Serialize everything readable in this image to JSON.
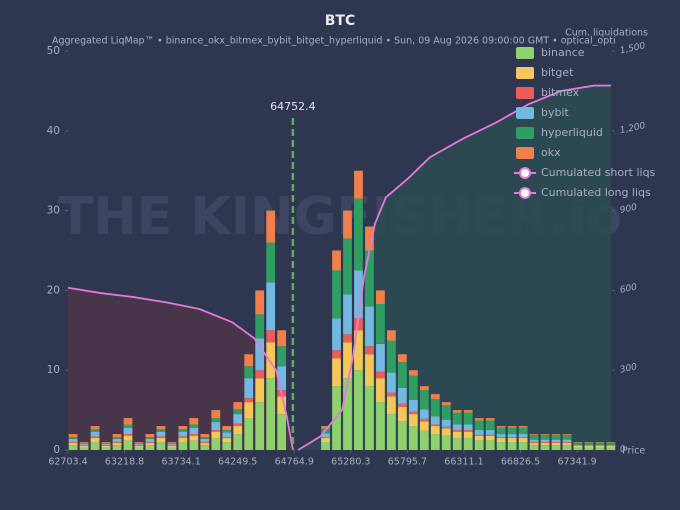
{
  "chart_data": {
    "type": "bar",
    "title": "BTC",
    "subtitle": "Aggregated LiqMap™  •  binance_okx_bitmex_bybit_bitget_hyperliquid  •  Sun, 09 Aug 2026 09:00:00 GMT  •  optical_opti",
    "y2_label": "Cum. liquidations",
    "x_label": "Price",
    "watermark": "THE KINGFISHER.io",
    "current_price": 64752.4,
    "current_price_color": "#5fae5f",
    "stacked": true,
    "legend": "top-right",
    "xlim": [
      62703.4,
      67660
    ],
    "xticks": [
      62703.4,
      63218.8,
      63734.1,
      64249.5,
      64764.9,
      65280.3,
      65795.7,
      66311.1,
      66826.5,
      67341.9
    ],
    "ylim": [
      0,
      50
    ],
    "yticks": [
      0,
      10,
      20,
      30,
      40,
      50
    ],
    "y2lim": [
      0,
      1500
    ],
    "y2ticks": [
      0,
      300,
      600,
      900,
      {
        "value": 1200,
        "label": "1,200"
      },
      {
        "value": 1500,
        "label": "1,500"
      }
    ],
    "x": [
      62750,
      62850,
      62950,
      63050,
      63150,
      63250,
      63350,
      63450,
      63550,
      63650,
      63750,
      63850,
      63950,
      64050,
      64150,
      64250,
      64350,
      64450,
      64550,
      64650,
      64750,
      64850,
      64950,
      65050,
      65150,
      65250,
      65350,
      65450,
      65550,
      65650,
      65750,
      65850,
      65950,
      66050,
      66150,
      66250,
      66350,
      66450,
      66550,
      66650,
      66750,
      66850,
      66950,
      67050,
      67150,
      67250,
      67350,
      67450,
      67550,
      67650
    ],
    "series": [
      {
        "name": "binance",
        "color": "#8fd16f",
        "values": [
          0.6,
          0.3,
          1,
          0.3,
          0.6,
          1.2,
          0.3,
          0.6,
          1,
          0.3,
          1,
          1.2,
          0.6,
          1.5,
          1,
          2,
          4,
          6,
          9,
          4.5,
          0,
          0,
          0,
          1,
          8,
          9,
          10,
          8,
          6,
          4.5,
          3.6,
          3,
          2.4,
          2,
          1.8,
          1.5,
          1.5,
          1.2,
          1.2,
          1,
          1,
          1,
          0.6,
          0.6,
          0.6,
          0.6,
          0.3,
          0.3,
          0.3,
          0.3
        ]
      },
      {
        "name": "bitget",
        "color": "#f5c65a",
        "values": [
          0.3,
          0.2,
          0.5,
          0.2,
          0.3,
          0.6,
          0.2,
          0.3,
          0.5,
          0.2,
          0.5,
          0.6,
          0.3,
          0.8,
          0.5,
          1,
          2,
          3,
          4.5,
          2.2,
          0,
          0,
          0,
          0.5,
          3.5,
          4.5,
          5,
          4,
          3,
          2.2,
          1.8,
          1.5,
          1.2,
          1,
          0.9,
          0.8,
          0.8,
          0.6,
          0.6,
          0.5,
          0.5,
          0.5,
          0.3,
          0.3,
          0.3,
          0.3,
          0.2,
          0.2,
          0.2,
          0.2
        ]
      },
      {
        "name": "bitmex",
        "color": "#ee5b5b",
        "values": [
          0.1,
          0.1,
          0.2,
          0.1,
          0.1,
          0.2,
          0.1,
          0.1,
          0.2,
          0.1,
          0.2,
          0.2,
          0.1,
          0.2,
          0.1,
          0.3,
          0.5,
          1,
          1.5,
          0.8,
          0,
          0,
          0,
          0.1,
          1,
          1,
          1.5,
          1,
          0.8,
          0.5,
          0.4,
          0.3,
          0.3,
          0.2,
          0.2,
          0.2,
          0.2,
          0.1,
          0.1,
          0.1,
          0.1,
          0.1,
          0.1,
          0.1,
          0.1,
          0.1,
          0.05,
          0.05,
          0.05,
          0.05
        ]
      },
      {
        "name": "bybit",
        "color": "#72b8e0",
        "values": [
          0.4,
          0.2,
          0.6,
          0.2,
          0.4,
          0.8,
          0.2,
          0.4,
          0.6,
          0.2,
          0.6,
          0.8,
          0.4,
          1,
          0.6,
          1.2,
          2.5,
          4,
          6,
          3,
          0,
          0,
          0,
          0.5,
          4,
          5,
          6,
          5,
          3.5,
          2.5,
          2,
          1.5,
          1.2,
          1,
          0.9,
          0.7,
          0.7,
          0.6,
          0.6,
          0.4,
          0.4,
          0.4,
          0.3,
          0.3,
          0.3,
          0.3,
          0.1,
          0.1,
          0.1,
          0.1
        ]
      },
      {
        "name": "hyperliquid",
        "color": "#2f9e63",
        "values": [
          0.2,
          0.1,
          0.3,
          0.1,
          0.2,
          0.4,
          0.1,
          0.2,
          0.3,
          0.1,
          0.3,
          0.4,
          0.2,
          0.5,
          0.3,
          0.6,
          1.5,
          3,
          5,
          2.5,
          0,
          0,
          0,
          0.6,
          6,
          7,
          9,
          7,
          5,
          4,
          3.2,
          3,
          2.4,
          2.2,
          1.8,
          1.5,
          1.5,
          1.2,
          1.2,
          0.8,
          0.8,
          0.8,
          0.6,
          0.6,
          0.6,
          0.6,
          0.3,
          0.3,
          0.3,
          0.3
        ]
      },
      {
        "name": "okx",
        "color": "#f07f4a",
        "values": [
          0.4,
          0.1,
          0.4,
          0.1,
          0.4,
          0.8,
          0.1,
          0.4,
          0.4,
          0.1,
          0.4,
          0.8,
          0.4,
          1,
          0.5,
          0.9,
          1.5,
          3,
          4,
          2,
          0,
          0,
          0,
          0.3,
          2.5,
          3.5,
          3.5,
          3,
          1.7,
          1.3,
          1,
          0.7,
          0.5,
          0.6,
          0.4,
          0.3,
          0.3,
          0.3,
          0.3,
          0.2,
          0.2,
          0.2,
          0.1,
          0.1,
          0.1,
          0.1,
          0.05,
          0.05,
          0.05,
          0.05
        ]
      }
    ],
    "lines": [
      {
        "name": "Cumulated short liqs",
        "color": "#e47ad8",
        "fill": "#2c4a52",
        "axis": "y2",
        "x": [
          64800,
          65000,
          65200,
          65300,
          65400,
          65500,
          65600,
          65800,
          66000,
          66300,
          66600,
          66900,
          67200,
          67500,
          67650
        ],
        "values": [
          0,
          50,
          150,
          350,
          650,
          850,
          950,
          1020,
          1100,
          1170,
          1230,
          1300,
          1350,
          1370,
          1370
        ]
      },
      {
        "name": "Cumulated long liqs",
        "color": "#e47ad8",
        "fill": "#4a3548",
        "axis": "y2",
        "x": [
          62703.4,
          63000,
          63300,
          63600,
          63900,
          64200,
          64400,
          64600,
          64700,
          64752.4
        ],
        "values": [
          610,
          590,
          575,
          555,
          530,
          480,
          420,
          300,
          120,
          0
        ]
      }
    ]
  }
}
